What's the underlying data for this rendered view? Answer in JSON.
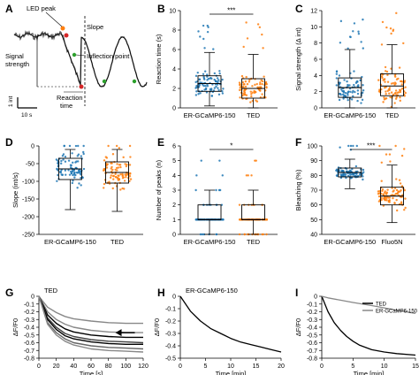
{
  "panelA": {
    "letter": "A",
    "annotations": {
      "led_peak": "LED peak",
      "slope": "Slope",
      "signal_strength": "Signal\nstrength",
      "inflection_point": "Inflection point",
      "reaction_time": "Reaction\ntime"
    },
    "scalebar_y": "1 int",
    "scalebar_x": "10 s"
  },
  "chart_data": [
    {
      "panel": "B",
      "type": "box",
      "ylabel": "Reaction time (s)",
      "ylim": [
        0,
        10
      ],
      "yticks": [
        0,
        2,
        4,
        6,
        8,
        10
      ],
      "categories": [
        "ER-GCaMP6-150",
        "TED"
      ],
      "significance": "***",
      "series": [
        {
          "name": "ER-GCaMP6-150",
          "color": "#1f77b4",
          "q1": 1.7,
          "median": 2.5,
          "q3": 3.3,
          "whisker_low": 0.2,
          "whisker_high": 5.7
        },
        {
          "name": "TED",
          "color": "#ff7f0e",
          "q1": 1.0,
          "median": 2.0,
          "q3": 3.0,
          "whisker_low": 0.0,
          "whisker_high": 5.5
        }
      ]
    },
    {
      "panel": "C",
      "type": "box",
      "ylabel": "Signal strength (Δ int)",
      "ylim": [
        0,
        12
      ],
      "yticks": [
        0,
        2,
        4,
        6,
        8,
        10,
        12
      ],
      "categories": [
        "ER-GCaMP6-150",
        "TED"
      ],
      "series": [
        {
          "name": "ER-GCaMP6-150",
          "color": "#1f77b4",
          "q1": 1.3,
          "median": 2.5,
          "q3": 3.7,
          "whisker_low": 0.0,
          "whisker_high": 7.2
        },
        {
          "name": "TED",
          "color": "#ff7f0e",
          "q1": 1.5,
          "median": 2.7,
          "q3": 4.2,
          "whisker_low": 0.0,
          "whisker_high": 7.8
        }
      ]
    },
    {
      "panel": "D",
      "type": "box",
      "ylabel": "Slope (int/s)",
      "ylim": [
        -250,
        0
      ],
      "yticks": [
        0,
        -50,
        -100,
        -150,
        -200,
        -250
      ],
      "categories": [
        "ER-GCaMP6-150",
        "TED"
      ],
      "series": [
        {
          "name": "ER-GCaMP6-150",
          "color": "#1f77b4",
          "q1": -95,
          "median": -65,
          "q3": -35,
          "whisker_low": -180,
          "whisker_high": -10
        },
        {
          "name": "TED",
          "color": "#ff7f0e",
          "q1": -105,
          "median": -75,
          "q3": -45,
          "whisker_low": -185,
          "whisker_high": -10
        }
      ]
    },
    {
      "panel": "E",
      "type": "box",
      "ylabel": "Number of peaks (n)",
      "ylim": [
        0,
        6
      ],
      "yticks": [
        0,
        1,
        2,
        3,
        4,
        5,
        6
      ],
      "categories": [
        "ER-GCaMP6-150",
        "TED"
      ],
      "significance": "*",
      "series": [
        {
          "name": "ER-GCaMP6-150",
          "color": "#1f77b4",
          "q1": 1,
          "median": 1,
          "q3": 2,
          "whisker_low": 0,
          "whisker_high": 3
        },
        {
          "name": "TED",
          "color": "#ff7f0e",
          "q1": 1,
          "median": 1,
          "q3": 2,
          "whisker_low": 0,
          "whisker_high": 3
        }
      ]
    },
    {
      "panel": "F",
      "type": "box",
      "ylabel": "Bleaching (%)",
      "ylim": [
        40,
        100
      ],
      "yticks": [
        40,
        50,
        60,
        70,
        80,
        90,
        100
      ],
      "categories": [
        "ER-GCaMP6-150",
        "Fluo5N"
      ],
      "significance": "***",
      "series": [
        {
          "name": "ER-GCaMP6-150",
          "color": "#1f77b4",
          "q1": 79,
          "median": 82,
          "q3": 85,
          "whisker_low": 71,
          "whisker_high": 91
        },
        {
          "name": "Fluo5N",
          "color": "#ff7f0e",
          "q1": 60,
          "median": 66,
          "q3": 72,
          "whisker_low": 48,
          "whisker_high": 87
        }
      ]
    },
    {
      "panel": "G",
      "type": "line",
      "title": "TED",
      "xlabel": "Time [s]",
      "ylabel": "ΔF/F0",
      "xlim": [
        0,
        120
      ],
      "ylim": [
        -0.8,
        0
      ],
      "xticks": [
        0,
        20,
        40,
        60,
        80,
        100,
        120
      ],
      "yticks": [
        0,
        -0.1,
        -0.2,
        -0.3,
        -0.4,
        -0.5,
        -0.6,
        -0.7,
        -0.8
      ],
      "series": [
        {
          "x": [
            0,
            10,
            20,
            30,
            40,
            60,
            80,
            100,
            120
          ],
          "y": [
            0,
            -0.14,
            -0.21,
            -0.26,
            -0.29,
            -0.32,
            -0.34,
            -0.35,
            -0.35
          ]
        },
        {
          "x": [
            0,
            10,
            20,
            30,
            40,
            60,
            80,
            100,
            120
          ],
          "y": [
            0,
            -0.2,
            -0.3,
            -0.36,
            -0.4,
            -0.44,
            -0.46,
            -0.47,
            -0.47
          ]
        },
        {
          "x": [
            0,
            10,
            20,
            30,
            40,
            60,
            80,
            100,
            120
          ],
          "y": [
            0,
            -0.24,
            -0.35,
            -0.42,
            -0.46,
            -0.5,
            -0.52,
            -0.53,
            -0.53
          ]
        },
        {
          "x": [
            0,
            10,
            20,
            30,
            40,
            60,
            80,
            100,
            120
          ],
          "y": [
            0,
            -0.28,
            -0.4,
            -0.48,
            -0.52,
            -0.56,
            -0.58,
            -0.59,
            -0.6
          ]
        },
        {
          "x": [
            0,
            10,
            20,
            30,
            40,
            60,
            80,
            100,
            120
          ],
          "y": [
            0,
            -0.3,
            -0.43,
            -0.51,
            -0.55,
            -0.59,
            -0.61,
            -0.62,
            -0.62
          ]
        },
        {
          "x": [
            0,
            10,
            20,
            30,
            40,
            60,
            80,
            100,
            120
          ],
          "y": [
            0,
            -0.34,
            -0.47,
            -0.55,
            -0.6,
            -0.64,
            -0.66,
            -0.67,
            -0.68
          ]
        },
        {
          "x": [
            0,
            10,
            20,
            30,
            40,
            60,
            80,
            100,
            120
          ],
          "y": [
            0,
            -0.36,
            -0.5,
            -0.58,
            -0.63,
            -0.68,
            -0.7,
            -0.71,
            -0.72
          ]
        }
      ]
    },
    {
      "panel": "H",
      "type": "line",
      "title": "ER-GCaMP6-150",
      "xlabel": "Time [min]",
      "ylabel": "ΔF/F0",
      "xlim": [
        0,
        20
      ],
      "ylim": [
        -0.5,
        0
      ],
      "xticks": [
        0,
        5,
        10,
        15,
        20
      ],
      "yticks": [
        0,
        -0.1,
        -0.2,
        -0.3,
        -0.4,
        -0.5
      ],
      "series": [
        {
          "x": [
            0,
            2,
            4,
            6,
            8,
            10,
            12,
            14,
            16,
            18,
            20
          ],
          "y": [
            0,
            -0.12,
            -0.2,
            -0.26,
            -0.3,
            -0.34,
            -0.37,
            -0.39,
            -0.41,
            -0.43,
            -0.45
          ]
        }
      ]
    },
    {
      "panel": "I",
      "type": "line",
      "xlabel": "Time [min]",
      "ylabel": "ΔF/F0",
      "xlim": [
        0,
        15
      ],
      "ylim": [
        -0.8,
        0
      ],
      "xticks": [
        0,
        5,
        10,
        15
      ],
      "yticks": [
        0,
        -0.1,
        -0.2,
        -0.3,
        -0.4,
        -0.5,
        -0.6,
        -0.7,
        -0.8
      ],
      "legend_position": "top-right",
      "series": [
        {
          "name": "TED",
          "color": "#000000",
          "x": [
            0,
            1,
            2,
            3,
            4,
            5,
            6,
            8,
            10,
            12,
            15
          ],
          "y": [
            0,
            -0.2,
            -0.34,
            -0.44,
            -0.52,
            -0.58,
            -0.63,
            -0.69,
            -0.72,
            -0.74,
            -0.76
          ]
        },
        {
          "name": "ER-GCaMP6-150",
          "color": "#888888",
          "x": [
            0,
            1,
            3,
            5,
            8,
            10,
            12,
            15
          ],
          "y": [
            0,
            -0.02,
            -0.05,
            -0.08,
            -0.12,
            -0.15,
            -0.18,
            -0.22
          ]
        }
      ]
    }
  ]
}
